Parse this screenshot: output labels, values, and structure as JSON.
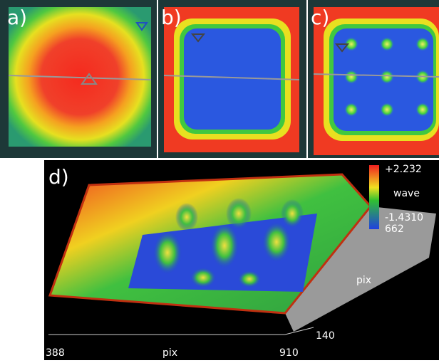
{
  "panels": {
    "a": {
      "label": "a)"
    },
    "b": {
      "label": "b)"
    },
    "c": {
      "label": "c)"
    },
    "d": {
      "label": "d)",
      "colorbar": {
        "max": "+2.232",
        "title": "wave",
        "min": "-1.4310",
        "extra": "662"
      },
      "y_axis": {
        "label": "pix",
        "tick": "140"
      },
      "x_axis": {
        "label": "pix",
        "start": "388",
        "end": "910"
      }
    }
  }
}
